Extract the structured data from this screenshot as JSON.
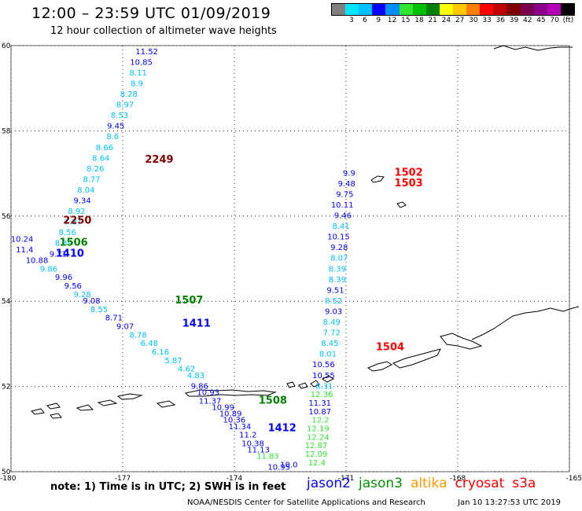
{
  "header": {
    "title": "12:00 – 23:59 UTC 01/09/2019",
    "subtitle": "12 hour collection of altimeter wave heights"
  },
  "color_scale": {
    "unit": "(ft)",
    "colors": [
      "#808080",
      "#00e5ff",
      "#00c0ff",
      "#0000ff",
      "#0090ff",
      "#2ee62e",
      "#00c000",
      "#008000",
      "#ffff00",
      "#ffc800",
      "#ff8000",
      "#ff0000",
      "#c00000",
      "#800000",
      "#7a0050",
      "#8a008a",
      "#b400b4",
      "#000000"
    ],
    "labels": [
      "3",
      "6",
      "9",
      "12",
      "15",
      "18",
      "21",
      "24",
      "27",
      "30",
      "33",
      "36",
      "39",
      "42",
      "45",
      "70",
      "(ft)"
    ]
  },
  "map": {
    "lat_labels": [
      "60",
      "58",
      "56",
      "54",
      "52",
      "50"
    ],
    "lon_labels": [
      "-180",
      "-177",
      "-174",
      "-171",
      "-168",
      "-165"
    ],
    "lat_range": [
      50,
      60
    ],
    "lon_range": [
      -180,
      -165
    ]
  },
  "passes": [
    {
      "satellite": "cryosat",
      "time": "2249",
      "color": "#800000",
      "label_lat": 57.25,
      "label_lon": -176.4
    },
    {
      "satellite": "cryosat",
      "time": "2250",
      "color": "#800000",
      "label_lat": 55.82,
      "label_lon": -178.6
    },
    {
      "satellite": "jason3",
      "time": "1506",
      "color": "#008000",
      "label_lat": 55.3,
      "label_lon": -178.7
    },
    {
      "satellite": "jason2",
      "time": "1410",
      "color": "#0000ff",
      "label_lat": 55.05,
      "label_lon": -178.8
    },
    {
      "satellite": "jason3",
      "time": "1507",
      "color": "#008000",
      "label_lat": 53.95,
      "label_lon": -175.6
    },
    {
      "satellite": "jason2",
      "time": "1411",
      "color": "#0000ff",
      "label_lat": 53.4,
      "label_lon": -175.4
    },
    {
      "satellite": "jason3",
      "time": "1508",
      "color": "#008000",
      "label_lat": 51.6,
      "label_lon": -173.35
    },
    {
      "satellite": "jason2",
      "time": "1412",
      "color": "#0000ff",
      "label_lat": 50.95,
      "label_lon": -173.1
    },
    {
      "satellite": "cryosat",
      "time": "1502",
      "color": "#ff0000",
      "label_lat": 56.95,
      "label_lon": -169.7
    },
    {
      "satellite": "cryosat",
      "time": "1503",
      "color": "#ff0000",
      "label_lat": 56.7,
      "label_lon": -169.7
    },
    {
      "satellite": "cryosat",
      "time": "1504",
      "color": "#ff0000",
      "label_lat": 52.85,
      "label_lon": -170.2
    }
  ],
  "tracks": [
    {
      "name": "cryosat-2249-2250",
      "points": [
        {
          "lat": 59.8,
          "lon": -176.05,
          "swh": 11.52,
          "color": "#0000ff"
        },
        {
          "lat": 59.55,
          "lon": -176.2,
          "swh": 10.85,
          "color": "#0000ff"
        },
        {
          "lat": 59.3,
          "lon": -176.35,
          "swh": 8.11,
          "color": "#00c0ff"
        },
        {
          "lat": 59.05,
          "lon": -176.45,
          "swh": 8.9,
          "color": "#00c0ff"
        },
        {
          "lat": 58.8,
          "lon": -176.6,
          "swh": 8.28,
          "color": "#00c0ff"
        },
        {
          "lat": 58.55,
          "lon": -176.7,
          "swh": 8.97,
          "color": "#00c0ff"
        },
        {
          "lat": 58.3,
          "lon": -176.85,
          "swh": 8.53,
          "color": "#00c0ff"
        },
        {
          "lat": 58.05,
          "lon": -176.95,
          "swh": 9.45,
          "color": "#0000ff"
        },
        {
          "lat": 57.8,
          "lon": -177.1,
          "swh": 8.6,
          "color": "#00c0ff"
        },
        {
          "lat": 57.55,
          "lon": -177.25,
          "swh": 8.66,
          "color": "#00c0ff"
        },
        {
          "lat": 57.3,
          "lon": -177.35,
          "swh": 8.64,
          "color": "#00c0ff"
        },
        {
          "lat": 57.05,
          "lon": -177.5,
          "swh": 8.26,
          "color": "#00c0ff"
        },
        {
          "lat": 56.8,
          "lon": -177.6,
          "swh": 8.77,
          "color": "#00c0ff"
        },
        {
          "lat": 56.55,
          "lon": -177.75,
          "swh": 8.04,
          "color": "#00c0ff"
        },
        {
          "lat": 56.3,
          "lon": -177.85,
          "swh": 9.34,
          "color": "#0000ff"
        },
        {
          "lat": 56.05,
          "lon": -178.0,
          "swh": 8.92,
          "color": "#00c0ff"
        },
        {
          "lat": 55.8,
          "lon": -178.1,
          "swh": 7.87,
          "color": "#00c0ff"
        },
        {
          "lat": 55.55,
          "lon": -178.25,
          "swh": 8.56,
          "color": "#00c0ff"
        },
        {
          "lat": 55.3,
          "lon": -178.35,
          "swh": 8.39,
          "color": "#00c0ff"
        },
        {
          "lat": 55.05,
          "lon": -178.5,
          "swh": 9.71,
          "color": "#0000ff"
        }
      ]
    },
    {
      "name": "jason-west",
      "points": [
        {
          "lat": 55.4,
          "lon": -179.4,
          "swh": 10.24,
          "color": "#0000ff"
        },
        {
          "lat": 55.15,
          "lon": -179.4,
          "swh": 11.4,
          "color": "#0000ff"
        },
        {
          "lat": 54.9,
          "lon": -179.0,
          "swh": 10.88,
          "color": "#0000ff"
        },
        {
          "lat": 54.7,
          "lon": -178.75,
          "swh": 9.86,
          "color": "#00c0ff"
        },
        {
          "lat": 54.5,
          "lon": -178.35,
          "swh": 9.96,
          "color": "#0000ff"
        },
        {
          "lat": 54.3,
          "lon": -178.1,
          "swh": 9.56,
          "color": "#0000ff"
        },
        {
          "lat": 54.1,
          "lon": -177.85,
          "swh": 9.28,
          "color": "#00c0ff"
        },
        {
          "lat": 53.95,
          "lon": -177.6,
          "swh": 9.08,
          "color": "#0000ff"
        },
        {
          "lat": 53.75,
          "lon": -177.4,
          "swh": 8.55,
          "color": "#00c0ff"
        },
        {
          "lat": 53.55,
          "lon": -177.0,
          "swh": 8.71,
          "color": "#0000ff"
        },
        {
          "lat": 53.35,
          "lon": -176.7,
          "swh": 9.07,
          "color": "#0000ff"
        },
        {
          "lat": 53.15,
          "lon": -176.35,
          "swh": 8.78,
          "color": "#00c0ff"
        },
        {
          "lat": 52.95,
          "lon": -176.05,
          "swh": 6.48,
          "color": "#00c0ff"
        },
        {
          "lat": 52.75,
          "lon": -175.75,
          "swh": 6.16,
          "color": "#00c0ff"
        },
        {
          "lat": 52.55,
          "lon": -175.4,
          "swh": 5.87,
          "color": "#00c0ff"
        },
        {
          "lat": 52.35,
          "lon": -175.05,
          "swh": 4.62,
          "color": "#00c0ff"
        },
        {
          "lat": 52.2,
          "lon": -174.8,
          "swh": 4.83,
          "color": "#00c0ff"
        },
        {
          "lat": 51.95,
          "lon": -174.7,
          "swh": 9.86,
          "color": "#0000ff"
        },
        {
          "lat": 51.8,
          "lon": -174.4,
          "swh": 10.93,
          "color": "#0000ff"
        },
        {
          "lat": 51.6,
          "lon": -174.35,
          "swh": 11.37,
          "color": "#0000ff"
        },
        {
          "lat": 51.45,
          "lon": -174.0,
          "swh": 10.99,
          "color": "#0000ff"
        },
        {
          "lat": 51.3,
          "lon": -173.8,
          "swh": 10.89,
          "color": "#0000ff"
        },
        {
          "lat": 51.15,
          "lon": -173.7,
          "swh": 10.36,
          "color": "#0000ff"
        },
        {
          "lat": 51.0,
          "lon": -173.55,
          "swh": 11.34,
          "color": "#0000ff"
        },
        {
          "lat": 50.8,
          "lon": -173.4,
          "swh": 11.2,
          "color": "#0000ff"
        },
        {
          "lat": 50.6,
          "lon": -173.2,
          "swh": 10.38,
          "color": "#0000ff"
        },
        {
          "lat": 50.45,
          "lon": -173.05,
          "swh": 11.13,
          "color": "#0000ff"
        },
        {
          "lat": 50.3,
          "lon": -172.8,
          "swh": 11.83,
          "color": "#2ee62e"
        },
        {
          "lat": 50.05,
          "lon": -172.5,
          "swh": 10.95,
          "color": "#0000ff"
        },
        {
          "lat": 50.1,
          "lon": -172.3,
          "swh": 10.0,
          "color": "#0000ff"
        }
      ]
    },
    {
      "name": "cryosat-1502-1504",
      "points": [
        {
          "lat": 56.95,
          "lon": -170.75,
          "swh": 9.9,
          "color": "#0000ff"
        },
        {
          "lat": 56.7,
          "lon": -170.75,
          "swh": 9.48,
          "color": "#0000ff"
        },
        {
          "lat": 56.45,
          "lon": -170.8,
          "swh": 9.75,
          "color": "#0000ff"
        },
        {
          "lat": 56.2,
          "lon": -170.8,
          "swh": 10.11,
          "color": "#0000ff"
        },
        {
          "lat": 55.95,
          "lon": -170.85,
          "swh": 9.46,
          "color": "#0000ff"
        },
        {
          "lat": 55.7,
          "lon": -170.9,
          "swh": 8.41,
          "color": "#00c0ff"
        },
        {
          "lat": 55.45,
          "lon": -170.9,
          "swh": 10.15,
          "color": "#0000ff"
        },
        {
          "lat": 55.2,
          "lon": -170.95,
          "swh": 9.28,
          "color": "#0000ff"
        },
        {
          "lat": 54.95,
          "lon": -170.95,
          "swh": 8.07,
          "color": "#00c0ff"
        },
        {
          "lat": 54.7,
          "lon": -171.0,
          "swh": 8.39,
          "color": "#00c0ff"
        },
        {
          "lat": 54.45,
          "lon": -171.0,
          "swh": 8.39,
          "color": "#00c0ff"
        },
        {
          "lat": 54.2,
          "lon": -171.05,
          "swh": 9.51,
          "color": "#0000ff"
        },
        {
          "lat": 53.95,
          "lon": -171.1,
          "swh": 8.52,
          "color": "#00c0ff"
        },
        {
          "lat": 53.7,
          "lon": -171.1,
          "swh": 9.03,
          "color": "#0000ff"
        },
        {
          "lat": 53.45,
          "lon": -171.15,
          "swh": 8.49,
          "color": "#00c0ff"
        },
        {
          "lat": 53.2,
          "lon": -171.15,
          "swh": 7.72,
          "color": "#00c0ff"
        },
        {
          "lat": 52.95,
          "lon": -171.2,
          "swh": 8.45,
          "color": "#00c0ff"
        },
        {
          "lat": 52.7,
          "lon": -171.25,
          "swh": 8.01,
          "color": "#00c0ff"
        },
        {
          "lat": 52.45,
          "lon": -171.3,
          "swh": 10.56,
          "color": "#0000ff"
        },
        {
          "lat": 52.2,
          "lon": -171.3,
          "swh": 10.55,
          "color": "#0000ff"
        },
        {
          "lat": 51.95,
          "lon": -171.35,
          "swh": 8.31,
          "color": "#00c0ff"
        },
        {
          "lat": 51.75,
          "lon": -171.35,
          "swh": 12.36,
          "color": "#2ee62e"
        },
        {
          "lat": 51.55,
          "lon": -171.4,
          "swh": 11.31,
          "color": "#0000ff"
        },
        {
          "lat": 51.35,
          "lon": -171.4,
          "swh": 10.87,
          "color": "#0000ff"
        },
        {
          "lat": 51.15,
          "lon": -171.45,
          "swh": 12.2,
          "color": "#2ee62e"
        },
        {
          "lat": 50.95,
          "lon": -171.45,
          "swh": 12.19,
          "color": "#2ee62e"
        },
        {
          "lat": 50.75,
          "lon": -171.45,
          "swh": 12.24,
          "color": "#2ee62e"
        },
        {
          "lat": 50.55,
          "lon": -171.5,
          "swh": 12.87,
          "color": "#2ee62e"
        },
        {
          "lat": 50.35,
          "lon": -171.5,
          "swh": 12.09,
          "color": "#2ee62e"
        },
        {
          "lat": 50.15,
          "lon": -171.55,
          "swh": 12.4,
          "color": "#2ee62e"
        }
      ]
    }
  ],
  "footer": {
    "note": "note:  1) Time is in UTC;  2) SWH is in feet",
    "satellites": [
      {
        "name": "jason2",
        "color": "#0000ff"
      },
      {
        "name": "jason3",
        "color": "#009000"
      },
      {
        "name": "altika",
        "color": "#ff9900"
      },
      {
        "name": "cryosat",
        "color": "#ff0000"
      },
      {
        "name": "s3a",
        "color": "#ff0000"
      }
    ],
    "credit": "NOAA/NESDIS Center for Satellite Applications and Research",
    "timestamp": "Jan 10 13:27:53 UTC 2019"
  }
}
